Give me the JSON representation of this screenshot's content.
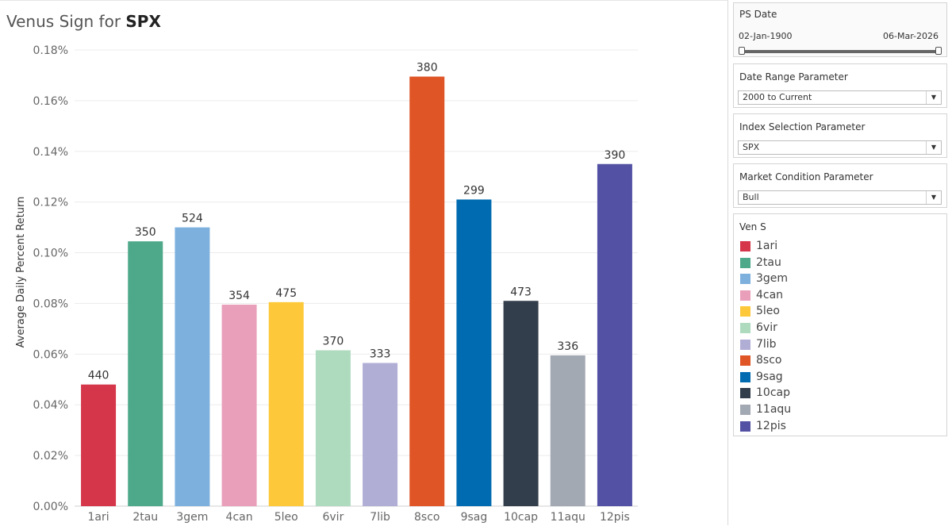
{
  "chart_data": {
    "type": "bar",
    "title_prefix": "Venus Sign for ",
    "title_bold": "SPX",
    "ylabel": "Average Daily Percent Return",
    "xlabel": "",
    "ylim": [
      0,
      0.18
    ],
    "yticks": [
      0,
      0.02,
      0.04,
      0.06,
      0.08,
      0.1,
      0.12,
      0.14,
      0.16,
      0.18
    ],
    "ytick_labels": [
      "0.00%",
      "0.02%",
      "0.04%",
      "0.06%",
      "0.08%",
      "0.10%",
      "0.12%",
      "0.14%",
      "0.16%",
      "0.18%"
    ],
    "categories": [
      "1ari",
      "2tau",
      "3gem",
      "4can",
      "5leo",
      "6vir",
      "7lib",
      "8sco",
      "9sag",
      "10cap",
      "11aqu",
      "12pis"
    ],
    "values": [
      0.048,
      0.1045,
      0.11,
      0.0795,
      0.0805,
      0.0615,
      0.0565,
      0.1695,
      0.121,
      0.081,
      0.0595,
      0.135
    ],
    "data_labels": [
      "440",
      "350",
      "524",
      "354",
      "475",
      "370",
      "333",
      "380",
      "299",
      "473",
      "336",
      "390"
    ],
    "colors": [
      "#d5364a",
      "#4ea88a",
      "#7eb0de",
      "#e99fba",
      "#fdc93a",
      "#aedbbe",
      "#b1aed6",
      "#df5526",
      "#006bb1",
      "#323e4c",
      "#a3a9b3",
      "#5251a4"
    ],
    "grid": true
  },
  "sidebar": {
    "ps_date": {
      "title": "PS Date",
      "start": "02-Jan-1900",
      "end": "06-Mar-2026",
      "start_fraction": 0.0,
      "end_fraction": 1.0
    },
    "date_range": {
      "title": "Date Range Parameter",
      "value": "2000 to Current"
    },
    "index_selection": {
      "title": "Index Selection Parameter",
      "value": "SPX"
    },
    "market_condition": {
      "title": "Market Condition Parameter",
      "value": "Bull"
    },
    "legend": {
      "title": "Ven S"
    },
    "dropdown_icon": "triangle-down-icon"
  }
}
